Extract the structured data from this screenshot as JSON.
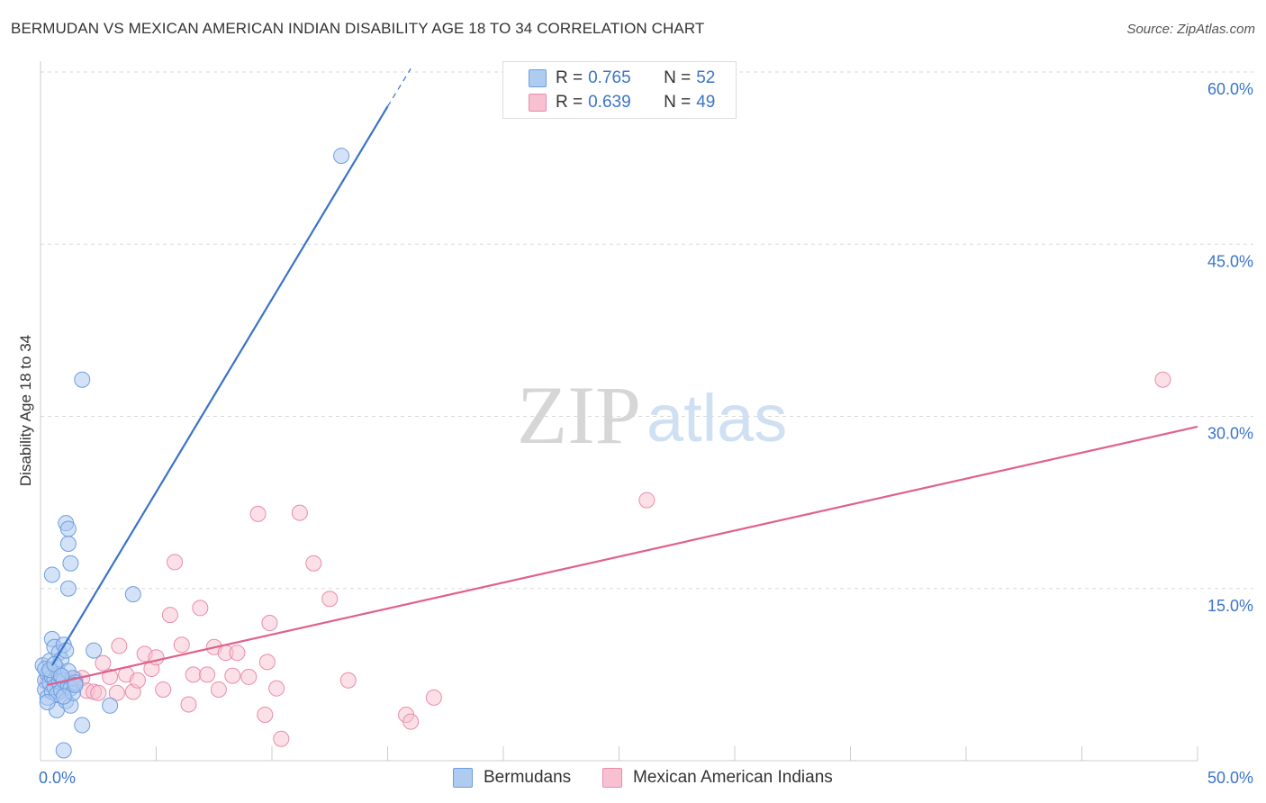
{
  "title": "BERMUDAN VS MEXICAN AMERICAN INDIAN DISABILITY AGE 18 TO 34 CORRELATION CHART",
  "source": "Source: ZipAtlas.com",
  "watermark": {
    "zip": "ZIP",
    "atlas": "atlas"
  },
  "legend": {
    "rows": [
      {
        "r_label": "R =",
        "r_value": "0.765",
        "n_label": "N =",
        "n_value": "52",
        "fill": "#aecbf0",
        "stroke": "#6d9ee0"
      },
      {
        "r_label": "R =",
        "r_value": "0.639",
        "n_label": "N =",
        "n_value": "49",
        "fill": "#f7c1d1",
        "stroke": "#e98cab"
      }
    ]
  },
  "bottom_legend": {
    "series1": "Bermudans",
    "series2": "Mexican American Indians"
  },
  "chart_data": {
    "type": "scatter",
    "title": "BERMUDAN VS MEXICAN AMERICAN INDIAN DISABILITY AGE 18 TO 34 CORRELATION CHART",
    "xlabel": "",
    "ylabel": "Disability Age 18 to 34",
    "xlim": [
      0,
      50
    ],
    "ylim": [
      0,
      60
    ],
    "x_tick_labels": [
      "0.0%",
      "50.0%"
    ],
    "y_ticks": [
      15,
      30,
      45,
      60
    ],
    "y_tick_labels": [
      "15.0%",
      "30.0%",
      "45.0%",
      "60.0%"
    ],
    "grid": true,
    "colors": {
      "bermudans": "#3a74c8",
      "mexican": "#e0608c"
    },
    "series": [
      {
        "name": "Bermudans",
        "color": "#3a74c8",
        "points": [
          [
            0.1,
            8.3
          ],
          [
            0.2,
            7.0
          ],
          [
            0.2,
            6.2
          ],
          [
            0.3,
            5.5
          ],
          [
            0.3,
            7.6
          ],
          [
            0.4,
            6.8
          ],
          [
            0.4,
            8.7
          ],
          [
            0.5,
            7.3
          ],
          [
            0.5,
            6.0
          ],
          [
            0.5,
            10.6
          ],
          [
            0.6,
            9.9
          ],
          [
            0.6,
            7.1
          ],
          [
            0.6,
            6.4
          ],
          [
            0.7,
            8.1
          ],
          [
            0.7,
            5.8
          ],
          [
            0.7,
            4.4
          ],
          [
            0.8,
            9.4
          ],
          [
            0.8,
            6.9
          ],
          [
            0.8,
            7.5
          ],
          [
            0.9,
            6.1
          ],
          [
            0.9,
            8.8
          ],
          [
            1.0,
            10.1
          ],
          [
            1.0,
            7.0
          ],
          [
            1.1,
            5.2
          ],
          [
            1.1,
            9.6
          ],
          [
            1.2,
            6.5
          ],
          [
            1.2,
            7.8
          ],
          [
            1.3,
            4.8
          ],
          [
            1.3,
            6.3
          ],
          [
            1.4,
            5.9
          ],
          [
            1.4,
            7.2
          ],
          [
            1.5,
            6.8
          ],
          [
            0.3,
            5.1
          ],
          [
            0.2,
            8.0
          ],
          [
            0.4,
            7.9
          ],
          [
            0.6,
            8.4
          ],
          [
            0.9,
            7.4
          ],
          [
            1.0,
            5.6
          ],
          [
            0.5,
            16.2
          ],
          [
            1.1,
            20.7
          ],
          [
            1.2,
            18.9
          ],
          [
            1.2,
            20.2
          ],
          [
            1.3,
            17.2
          ],
          [
            1.2,
            15.0
          ],
          [
            1.8,
            33.2
          ],
          [
            4.0,
            14.5
          ],
          [
            2.3,
            9.6
          ],
          [
            3.0,
            4.8
          ],
          [
            1.8,
            3.1
          ],
          [
            1.0,
            0.9
          ],
          [
            13.0,
            52.7
          ],
          [
            1.5,
            6.6
          ]
        ]
      },
      {
        "name": "Mexican American Indians",
        "color": "#e0608c",
        "points": [
          [
            0.3,
            6.8
          ],
          [
            0.5,
            7.2
          ],
          [
            0.8,
            6.5
          ],
          [
            1.0,
            7.0
          ],
          [
            1.2,
            6.9
          ],
          [
            1.5,
            7.1
          ],
          [
            1.8,
            7.2
          ],
          [
            2.0,
            6.1
          ],
          [
            2.3,
            6.0
          ],
          [
            2.5,
            5.9
          ],
          [
            2.7,
            8.5
          ],
          [
            3.0,
            7.3
          ],
          [
            3.3,
            5.9
          ],
          [
            3.4,
            10.0
          ],
          [
            3.7,
            7.5
          ],
          [
            4.0,
            6.0
          ],
          [
            4.2,
            7.0
          ],
          [
            4.5,
            9.3
          ],
          [
            4.8,
            8.0
          ],
          [
            5.0,
            9.0
          ],
          [
            5.3,
            6.2
          ],
          [
            5.6,
            12.7
          ],
          [
            5.8,
            17.3
          ],
          [
            6.1,
            10.1
          ],
          [
            6.4,
            4.9
          ],
          [
            6.6,
            7.5
          ],
          [
            6.9,
            13.3
          ],
          [
            7.2,
            7.5
          ],
          [
            7.5,
            9.9
          ],
          [
            7.7,
            6.2
          ],
          [
            8.0,
            9.4
          ],
          [
            8.3,
            7.4
          ],
          [
            8.5,
            9.4
          ],
          [
            9.0,
            7.3
          ],
          [
            9.4,
            21.5
          ],
          [
            9.7,
            4.0
          ],
          [
            9.8,
            8.6
          ],
          [
            9.9,
            12.0
          ],
          [
            10.2,
            6.3
          ],
          [
            10.4,
            1.9
          ],
          [
            11.2,
            21.6
          ],
          [
            11.8,
            17.2
          ],
          [
            12.5,
            14.1
          ],
          [
            13.3,
            7.0
          ],
          [
            15.8,
            4.0
          ],
          [
            16.0,
            3.4
          ],
          [
            17.0,
            5.5
          ],
          [
            26.2,
            22.7
          ],
          [
            48.5,
            33.2
          ]
        ]
      }
    ],
    "trend_lines": [
      {
        "series": "Bermudans",
        "solid": [
          [
            0.5,
            8.3
          ],
          [
            15.0,
            57.0
          ]
        ],
        "dashed": [
          [
            15.0,
            57.0
          ],
          [
            16.0,
            60.3
          ]
        ]
      },
      {
        "series": "Mexican American Indians",
        "solid": [
          [
            0.3,
            6.6
          ],
          [
            50.0,
            29.1
          ]
        ]
      }
    ]
  }
}
